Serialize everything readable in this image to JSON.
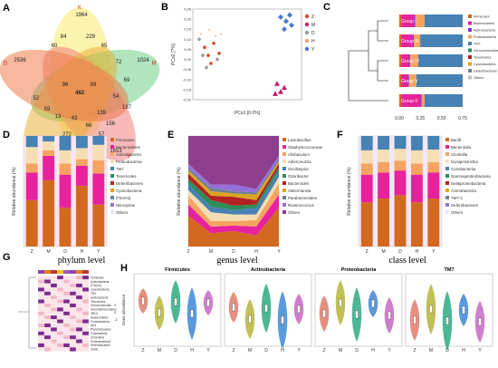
{
  "labels": {
    "A": "A",
    "B": "B",
    "C": "C",
    "D": "D",
    "E": "E",
    "F": "F",
    "G": "G",
    "H": "H"
  },
  "venn": {
    "sets": [
      {
        "name": "K",
        "color": "#f7e96b"
      },
      {
        "name": "M",
        "color": "#6fcf86"
      },
      {
        "name": "Y",
        "color": "#f08080"
      },
      {
        "name": "Z",
        "color": "#e9b13a"
      },
      {
        "name": "D",
        "color": "#ef7b4a"
      }
    ],
    "counts": [
      {
        "id": "top",
        "value": "1964"
      },
      {
        "id": "m-only",
        "value": "1024"
      },
      {
        "id": "y-only",
        "value": "1653"
      },
      {
        "id": "z-only",
        "value": "1029"
      },
      {
        "id": "d-only",
        "value": "2536"
      },
      {
        "id": "center",
        "value": "462"
      },
      {
        "id": "c1",
        "value": "229"
      },
      {
        "id": "c2",
        "value": "65"
      },
      {
        "id": "c3",
        "value": "84"
      },
      {
        "id": "c4",
        "value": "60"
      },
      {
        "id": "c5",
        "value": "72"
      },
      {
        "id": "c6",
        "value": "69"
      },
      {
        "id": "c7",
        "value": "96"
      },
      {
        "id": "c8",
        "value": "89"
      },
      {
        "id": "c9",
        "value": "54"
      },
      {
        "id": "c10",
        "value": "139"
      },
      {
        "id": "c11",
        "value": "66"
      },
      {
        "id": "c12",
        "value": "59"
      },
      {
        "id": "c13",
        "value": "52"
      },
      {
        "id": "c14",
        "value": "272"
      },
      {
        "id": "c15",
        "value": "43"
      },
      {
        "id": "c16",
        "value": "156"
      },
      {
        "id": "c17",
        "value": "187"
      },
      {
        "id": "c18",
        "value": "13"
      },
      {
        "id": "c19",
        "value": "57"
      }
    ]
  },
  "chart_data": [
    {
      "panel": "B",
      "type": "scatter",
      "xlabel": "PCo1 [0.0%]",
      "ylabel": "PCo2 [?%]",
      "ylim": [
        -0.2,
        0.25
      ],
      "yticks": [
        "0.25",
        "0.20",
        "0.15",
        "0.10",
        "0.05",
        "0.00",
        "-0.05",
        "-0.10",
        "-0.15",
        "-0.20"
      ],
      "legend": [
        {
          "name": "Z",
          "color": "#d04a2a"
        },
        {
          "name": "M",
          "color": "#c11c6a"
        },
        {
          "name": "D",
          "color": "#9a9a9a"
        },
        {
          "name": "H",
          "color": "#f0a070"
        },
        {
          "name": "Y",
          "color": "#4a78c8"
        }
      ],
      "points": [
        {
          "g": "Y",
          "x": 0.62,
          "y": 0.21
        },
        {
          "g": "Y",
          "x": 0.68,
          "y": 0.19
        },
        {
          "g": "Y",
          "x": 0.72,
          "y": 0.22
        },
        {
          "g": "Y",
          "x": 0.66,
          "y": 0.15
        },
        {
          "g": "Y",
          "x": 0.74,
          "y": 0.17
        },
        {
          "g": "M",
          "x": 0.58,
          "y": -0.12
        },
        {
          "g": "M",
          "x": 0.62,
          "y": -0.16
        },
        {
          "g": "M",
          "x": 0.66,
          "y": -0.14
        },
        {
          "g": "M",
          "x": 0.56,
          "y": -0.17
        },
        {
          "g": "Z",
          "x": -0.22,
          "y": 0.06
        },
        {
          "g": "Z",
          "x": -0.18,
          "y": 0.02
        },
        {
          "g": "Z",
          "x": -0.12,
          "y": 0.08
        },
        {
          "g": "Z",
          "x": -0.15,
          "y": -0.02
        },
        {
          "g": "Z",
          "x": -0.06,
          "y": 0.03
        },
        {
          "g": "D",
          "x": -0.28,
          "y": 0.1
        },
        {
          "g": "D",
          "x": -0.24,
          "y": 0.02
        },
        {
          "g": "D",
          "x": -0.2,
          "y": -0.04
        },
        {
          "g": "D",
          "x": -0.08,
          "y": 0.0
        },
        {
          "g": "H",
          "x": -0.26,
          "y": 0.12
        },
        {
          "g": "H",
          "x": -0.17,
          "y": 0.14
        },
        {
          "g": "H",
          "x": -0.1,
          "y": 0.11
        },
        {
          "g": "H",
          "x": -0.04,
          "y": 0.12
        }
      ]
    },
    {
      "panel": "C",
      "type": "bar",
      "categories": [
        "Group I",
        "Group III",
        "Group IV",
        "Group V",
        "Group II"
      ],
      "xticks": [
        "0.00",
        "0.25",
        "0.50",
        "0.75"
      ],
      "legend": [
        "Firmicutes",
        "Bacteroidetes",
        "Actinobacteria",
        "Proteobacteria",
        "TM7",
        "Verrucomicrobia",
        "Tenericutes",
        "Cyanobacteria",
        "Deferribacteres",
        "Others"
      ],
      "colors": [
        "#d2691e",
        "#e8229c",
        "#8a2be2",
        "#f4a460",
        "#4682b4",
        "#2e8b57",
        "#b22222",
        "#daa520",
        "#708090",
        "#c0c0c0"
      ],
      "series": [
        {
          "values": [
            0.03,
            0.03,
            0.03,
            0.03,
            0.03
          ]
        },
        {
          "values": [
            0.2,
            0.18,
            0.12,
            0.1,
            0.3
          ]
        },
        {
          "values": [
            0.02,
            0.02,
            0.02,
            0.02,
            0.02
          ]
        },
        {
          "values": [
            0.15,
            0.1,
            0.13,
            0.12,
            0.05
          ]
        },
        {
          "values": [
            0.6,
            0.67,
            0.7,
            0.73,
            0.6
          ]
        }
      ]
    },
    {
      "panel": "D",
      "type": "bar",
      "title": "phylum level",
      "ylabel": "Relative abundance (%)",
      "categories": [
        "Z",
        "M",
        "D",
        "H",
        "Y"
      ],
      "legend": [
        "Firmicutes",
        "Bacteroidetes",
        "Actinobacteria",
        "Proteobacteria",
        "TM7",
        "Tenericutes",
        "Deferribacteres",
        "Cyanobacteria",
        "[Thermi]",
        "Nitrospirae",
        "Others"
      ],
      "colors": [
        "#d2691e",
        "#e8229c",
        "#f4a460",
        "#f5deb3",
        "#4682b4",
        "#2e8b57",
        "#b22222",
        "#daa520",
        "#708090",
        "#9370db",
        "#e6e6fa"
      ],
      "series": [
        {
          "values": [
            42,
            60,
            35,
            55,
            38
          ]
        },
        {
          "values": [
            25,
            22,
            30,
            18,
            28
          ]
        },
        {
          "values": [
            8,
            5,
            10,
            6,
            12
          ]
        },
        {
          "values": [
            15,
            8,
            12,
            10,
            14
          ]
        },
        {
          "values": [
            10,
            5,
            13,
            11,
            8
          ]
        }
      ]
    },
    {
      "panel": "E",
      "type": "area",
      "title": "genus level",
      "ylabel": "Relative abundance (%)",
      "categories": [
        "Z",
        "M",
        "D",
        "H",
        "Y"
      ],
      "legend": [
        "Lactobacillus",
        "Staphylococcaceae",
        "Allobaculum",
        "Adlercreutzia",
        "Oscillospira",
        "Odoribacter",
        "Bacteroides",
        "Akkermansia",
        "Parabacteroides",
        "Ruminococcus",
        "Others"
      ],
      "colors": [
        "#d2691e",
        "#e8229c",
        "#f4a460",
        "#f5deb3",
        "#4682b4",
        "#2e8b57",
        "#b22222",
        "#daa520",
        "#708090",
        "#9370db",
        "#8e3e8e"
      ]
    },
    {
      "panel": "F",
      "type": "bar",
      "title": "class level",
      "ylabel": "Relative abundance (%)",
      "categories": [
        "Z",
        "M",
        "D",
        "H",
        "Y"
      ],
      "legend": [
        "Bacilli",
        "Bacteroidia",
        "Clostridia",
        "Erysipelotrichia",
        "Coriobacteriia",
        "Gammaproteobacteria",
        "Deltaproteobacteria",
        "Actinobacteria",
        "TM7-3",
        "Deferribacteres",
        "Others"
      ],
      "colors": [
        "#d2691e",
        "#e8229c",
        "#f4a460",
        "#f5deb3",
        "#4682b4",
        "#2e8b57",
        "#b22222",
        "#daa520",
        "#708090",
        "#9370db",
        "#e6e6fa"
      ]
    },
    {
      "panel": "G",
      "type": "heatmap",
      "rows": [
        "Firmicutes",
        "Actinobacteria",
        "[Thermi]",
        "Cyanobacteria",
        "TM7",
        "Acidobacteria",
        "Tenericutes",
        "Verrucomicrobia",
        "Gemmatimonadetes",
        "SBC3",
        "Bacteroidetes",
        "Proteobacteria",
        "AD3",
        "Planctomycetes",
        "Fusobacteria",
        "Chloroflexi",
        "Proteobacteria2",
        "Deferribacteres",
        "GN02"
      ],
      "legend": [
        "Group",
        "K",
        "M",
        "D",
        "H",
        "Y"
      ],
      "scale": [
        "2",
        "0",
        "-2"
      ]
    },
    {
      "panel": "H",
      "type": "violin",
      "ylabel": "Gene abundance",
      "subplots": [
        {
          "title": "Firmicutes",
          "categories": [
            "Z",
            "M",
            "D",
            "H",
            "Y"
          ]
        },
        {
          "title": "Actinobacteria",
          "categories": [
            "Z",
            "M",
            "D",
            "H",
            "Y"
          ]
        },
        {
          "title": "Proteobacteria",
          "categories": [
            "Z",
            "M",
            "D",
            "H",
            "Y"
          ]
        },
        {
          "title": "TM7",
          "categories": [
            "Z",
            "M",
            "D",
            "H",
            "Y"
          ]
        }
      ]
    }
  ]
}
